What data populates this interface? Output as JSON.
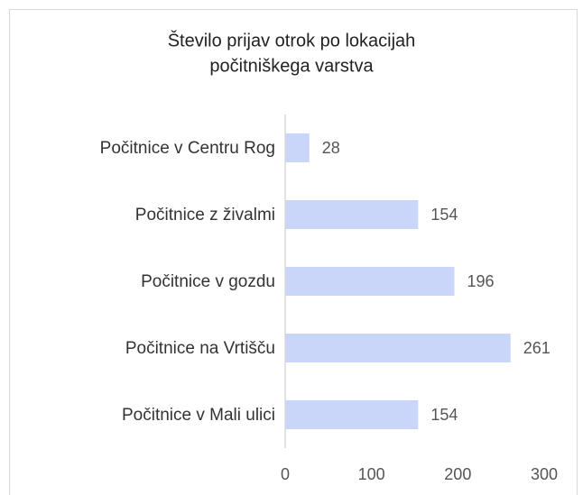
{
  "chart_data": {
    "type": "bar",
    "orientation": "horizontal",
    "title": [
      "Število prijav otrok po lokacijah",
      "počitniškega varstva"
    ],
    "categories": [
      "Počitnice v Centru Rog",
      "Počitnice z živalmi",
      "Počitnice v gozdu",
      "Počitnice na Vrtišču",
      "Počitnice v Mali ulici"
    ],
    "values": [
      28,
      154,
      196,
      261,
      154
    ],
    "color": "#c9d6f9",
    "xlim": [
      0,
      300
    ],
    "xticks": [
      0,
      100,
      200,
      300
    ],
    "grid": false
  }
}
